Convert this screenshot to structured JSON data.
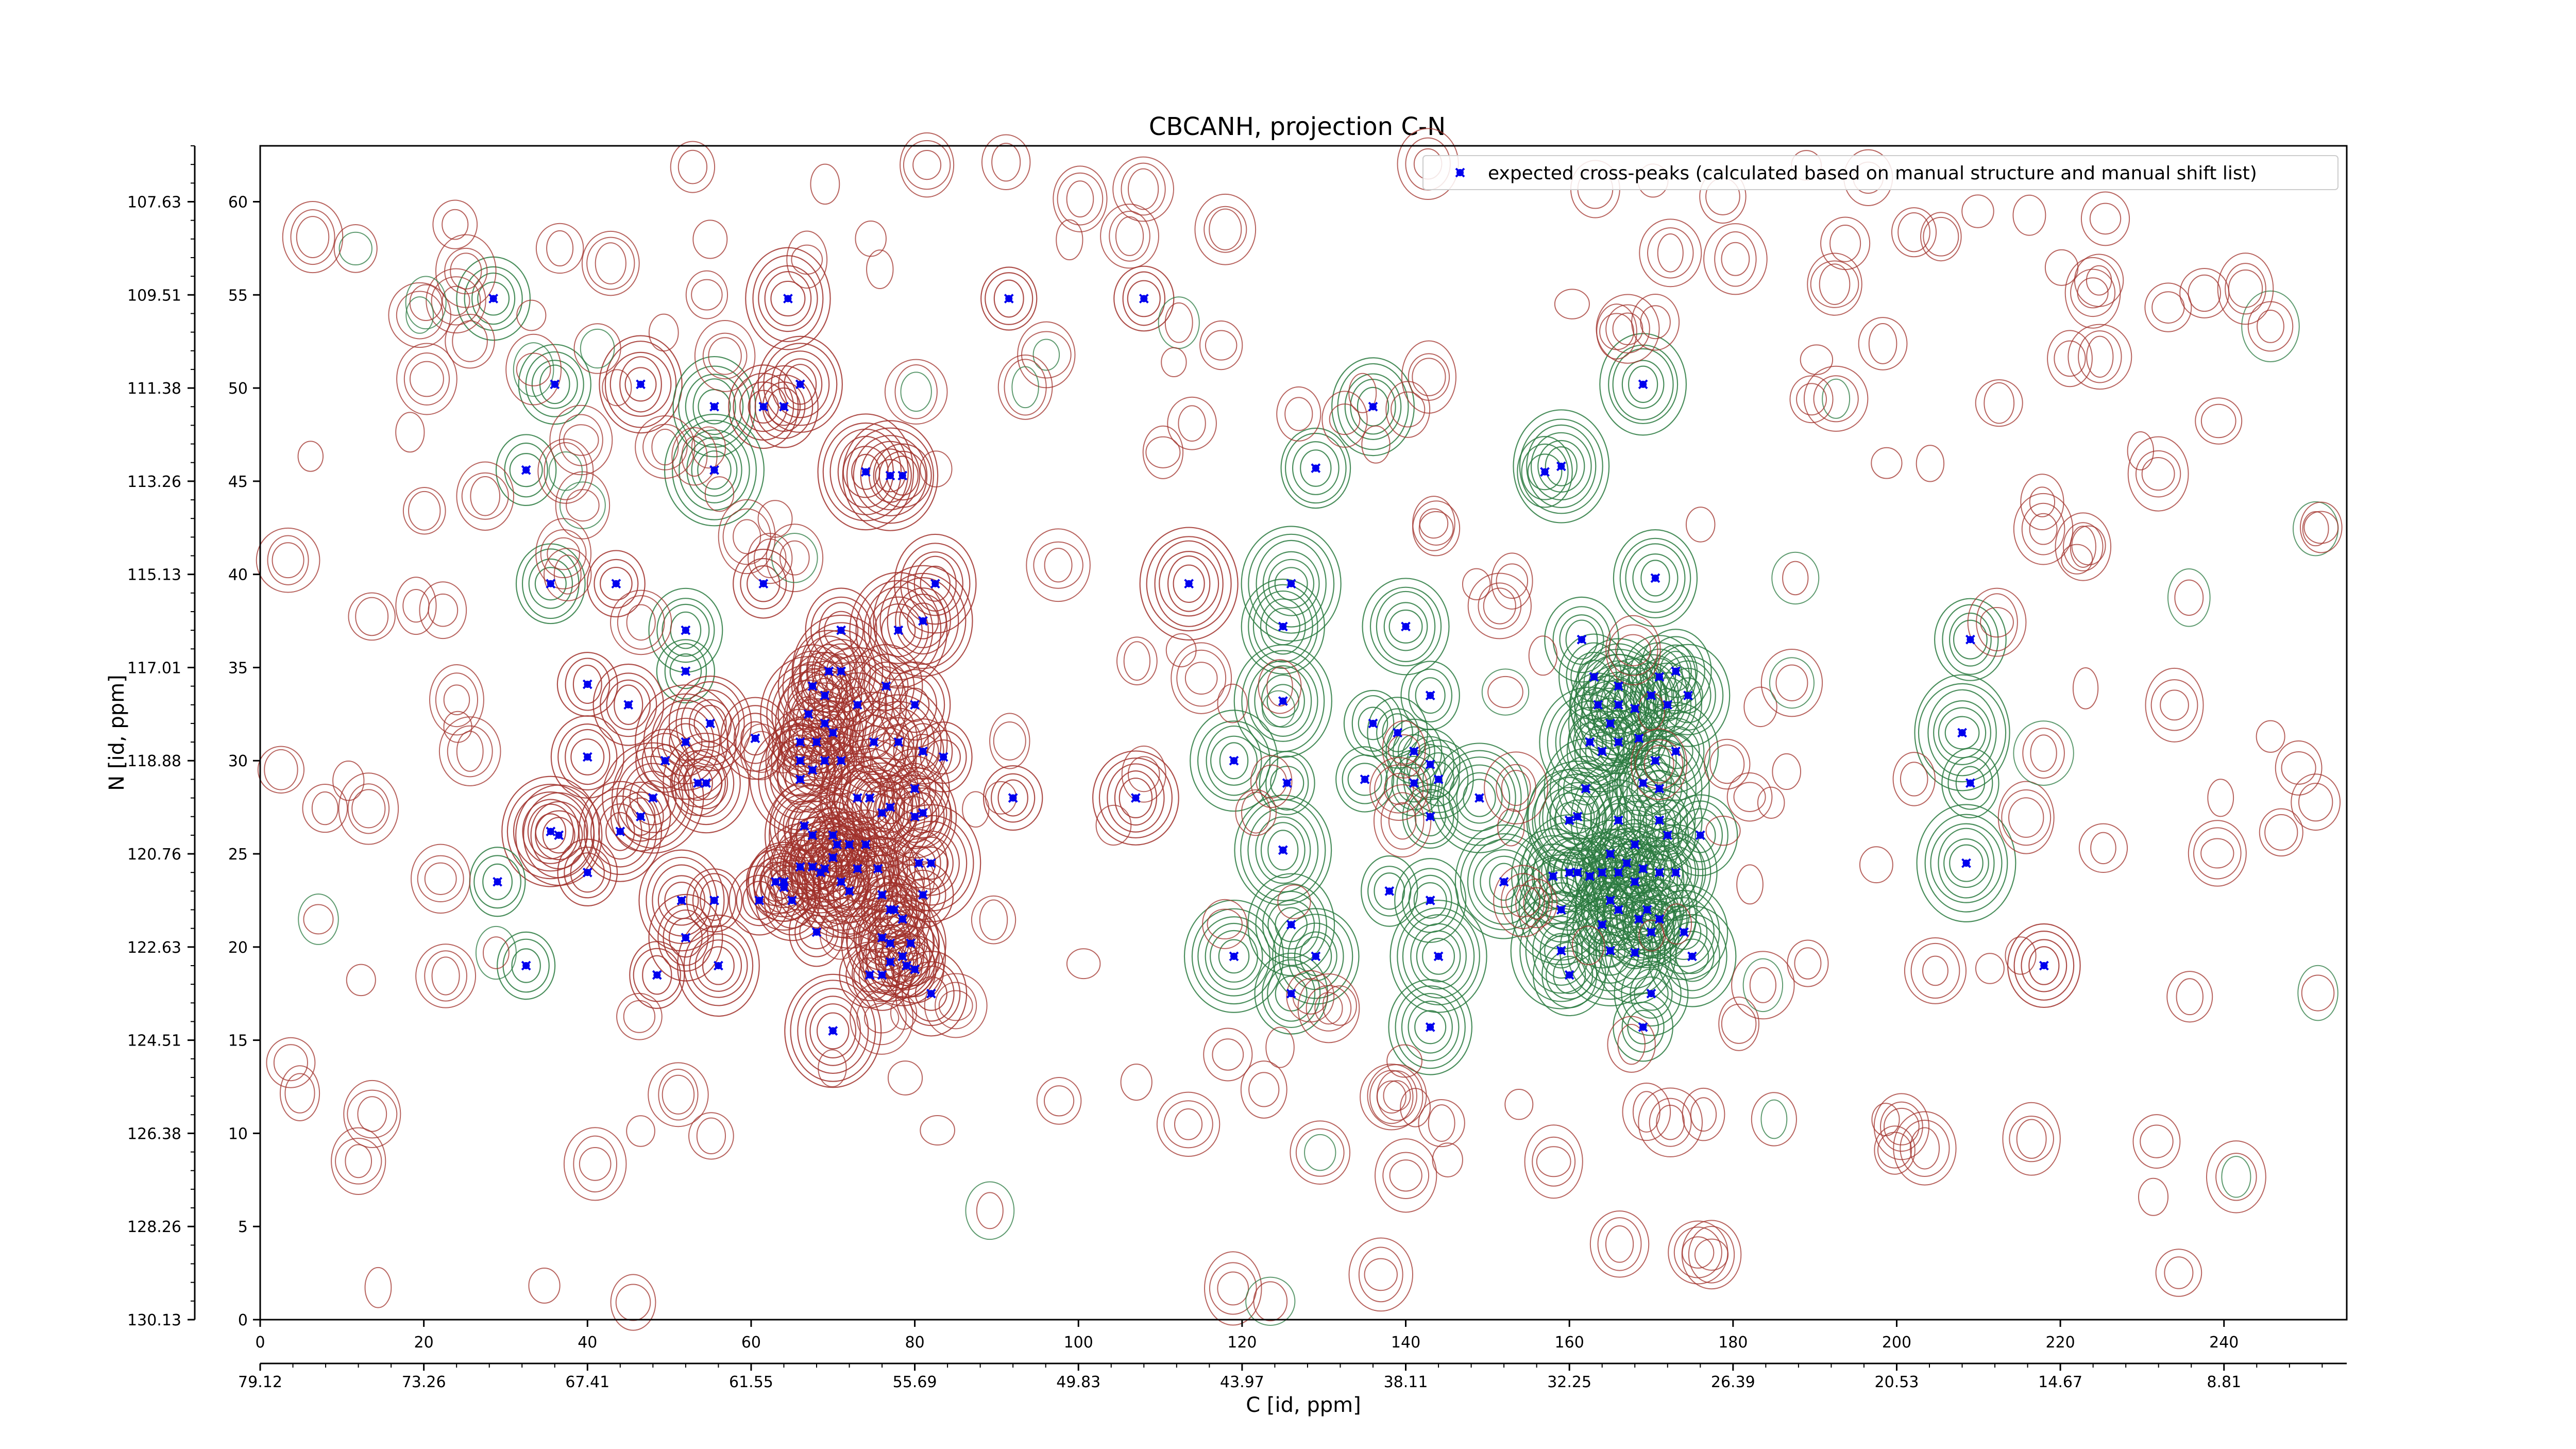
{
  "chart_data": {
    "type": "scatter",
    "title": "CBCANH, projection C-N",
    "xlabel": "C [id, ppm]",
    "ylabel": "N [id, ppm]",
    "xlim": [
      0,
      255
    ],
    "ylim": [
      0,
      63
    ],
    "x_index_ticks": [
      0,
      20,
      40,
      60,
      80,
      100,
      120,
      140,
      160,
      180,
      200,
      220,
      240
    ],
    "x_ppm_ticks": [
      "79.12",
      "73.26",
      "67.41",
      "61.55",
      "55.69",
      "49.83",
      "43.97",
      "38.11",
      "32.25",
      "26.39",
      "20.53",
      "14.67",
      "8.81"
    ],
    "y_index_ticks": [
      0,
      5,
      10,
      15,
      20,
      25,
      30,
      35,
      40,
      45,
      50,
      55,
      60
    ],
    "y_ppm_ticks": [
      "130.13",
      "128.26",
      "126.38",
      "124.51",
      "122.63",
      "120.76",
      "118.88",
      "117.01",
      "115.13",
      "113.26",
      "111.38",
      "109.51",
      "107.63"
    ],
    "legend": {
      "position": "top-right",
      "entries": [
        "expected cross-peaks (calculated based on manual structure and manual shift list)"
      ]
    },
    "colors": {
      "points": "#0000ee",
      "contour_positive": "#a0302a",
      "contour_negative": "#2a7a40"
    },
    "series": [
      {
        "name": "expected cross-peaks (calculated based on manual structure and manual shift list)",
        "marker": "x",
        "points": [
          [
            28.5,
            54.8
          ],
          [
            36,
            50.2
          ],
          [
            46.5,
            50.2
          ],
          [
            55.5,
            49
          ],
          [
            61.5,
            49
          ],
          [
            64,
            49
          ],
          [
            66,
            50.2
          ],
          [
            32.5,
            45.6
          ],
          [
            55.5,
            45.6
          ],
          [
            74,
            45.5
          ],
          [
            77,
            45.3
          ],
          [
            78.5,
            45.3
          ],
          [
            35.5,
            39.5
          ],
          [
            43.5,
            39.5
          ],
          [
            61.5,
            39.5
          ],
          [
            82.5,
            39.5
          ],
          [
            52,
            37
          ],
          [
            71,
            37
          ],
          [
            78,
            37
          ],
          [
            81,
            37.5
          ],
          [
            52,
            34.8
          ],
          [
            69.5,
            34.8
          ],
          [
            71,
            34.8
          ],
          [
            40,
            34.1
          ],
          [
            67.5,
            34
          ],
          [
            69,
            33.5
          ],
          [
            76.5,
            34
          ],
          [
            67,
            32.5
          ],
          [
            73,
            33
          ],
          [
            80,
            33
          ],
          [
            45,
            33
          ],
          [
            69,
            32
          ],
          [
            55,
            32
          ],
          [
            68,
            31
          ],
          [
            52,
            31
          ],
          [
            66,
            31
          ],
          [
            70,
            31.5
          ],
          [
            60.5,
            31.2
          ],
          [
            40,
            30.2
          ],
          [
            66,
            30
          ],
          [
            67.5,
            29.5
          ],
          [
            69,
            30
          ],
          [
            71,
            30
          ],
          [
            75,
            31
          ],
          [
            78,
            31
          ],
          [
            81,
            30.5
          ],
          [
            83.5,
            30.2
          ],
          [
            49.5,
            30
          ],
          [
            53.5,
            28.8
          ],
          [
            54.5,
            28.8
          ],
          [
            74.5,
            28
          ],
          [
            66,
            29
          ],
          [
            73,
            28
          ],
          [
            48,
            28
          ],
          [
            80,
            28.5
          ],
          [
            92,
            28
          ],
          [
            77,
            27.5
          ],
          [
            80,
            27
          ],
          [
            46.5,
            27
          ],
          [
            76,
            27.2
          ],
          [
            81,
            27.2
          ],
          [
            66.5,
            26.5
          ],
          [
            67.5,
            26
          ],
          [
            70,
            26
          ],
          [
            72,
            25.5
          ],
          [
            35.5,
            26.2
          ],
          [
            36.5,
            26
          ],
          [
            44,
            26.2
          ],
          [
            70.5,
            25.5
          ],
          [
            74,
            25.5
          ],
          [
            70,
            24.8
          ],
          [
            69,
            24.2
          ],
          [
            66,
            24.3
          ],
          [
            67.5,
            24.3
          ],
          [
            68.5,
            24
          ],
          [
            73,
            24.2
          ],
          [
            75.5,
            24.2
          ],
          [
            71,
            23.5
          ],
          [
            80.5,
            24.5
          ],
          [
            82,
            24.5
          ],
          [
            63,
            23.5
          ],
          [
            64,
            23.5
          ],
          [
            40,
            24
          ],
          [
            29,
            23.5
          ],
          [
            64,
            23.2
          ],
          [
            72,
            23
          ],
          [
            76,
            22.8
          ],
          [
            81,
            22.8
          ],
          [
            51.5,
            22.5
          ],
          [
            55.5,
            22.5
          ],
          [
            61,
            22.5
          ],
          [
            65,
            22.5
          ],
          [
            77,
            22
          ],
          [
            77.5,
            22
          ],
          [
            78.5,
            21.5
          ],
          [
            68,
            20.8
          ],
          [
            52,
            20.5
          ],
          [
            76,
            20.5
          ],
          [
            77,
            20.2
          ],
          [
            79.5,
            20.2
          ],
          [
            78.5,
            19.5
          ],
          [
            77,
            19.2
          ],
          [
            79,
            19
          ],
          [
            80,
            18.8
          ],
          [
            76,
            18.5
          ],
          [
            74.5,
            18.5
          ],
          [
            56,
            19
          ],
          [
            32.5,
            19
          ],
          [
            48.5,
            18.5
          ],
          [
            82,
            17.5
          ],
          [
            70,
            15.5
          ],
          [
            107,
            28
          ],
          [
            126,
            39.5
          ],
          [
            125,
            37.2
          ],
          [
            140,
            37.2
          ],
          [
            125,
            33.2
          ],
          [
            136,
            32
          ],
          [
            143,
            33.5
          ],
          [
            139,
            31.5
          ],
          [
            141,
            30.5
          ],
          [
            143,
            29.8
          ],
          [
            119,
            30
          ],
          [
            125.5,
            28.8
          ],
          [
            135,
            29
          ],
          [
            141,
            28.8
          ],
          [
            144,
            29
          ],
          [
            149,
            28
          ],
          [
            143,
            27
          ],
          [
            125,
            25.2
          ],
          [
            138,
            23
          ],
          [
            143,
            22.5
          ],
          [
            126,
            21.2
          ],
          [
            119,
            19.5
          ],
          [
            129,
            19.5
          ],
          [
            144,
            19.5
          ],
          [
            126,
            17.5
          ],
          [
            143,
            15.7
          ],
          [
            152,
            23.5
          ],
          [
            158,
            23.8
          ],
          [
            160,
            24
          ],
          [
            161,
            24
          ],
          [
            162.5,
            23.8
          ],
          [
            164,
            24
          ],
          [
            165,
            25
          ],
          [
            166,
            24
          ],
          [
            167,
            24.5
          ],
          [
            168,
            23.5
          ],
          [
            169,
            24.2
          ],
          [
            171,
            24
          ],
          [
            173,
            24
          ],
          [
            159,
            22
          ],
          [
            165,
            22.5
          ],
          [
            166,
            22
          ],
          [
            168.5,
            21.5
          ],
          [
            169.5,
            22
          ],
          [
            171,
            21.5
          ],
          [
            164,
            21.2
          ],
          [
            170,
            20.8
          ],
          [
            174,
            20.8
          ],
          [
            159,
            19.8
          ],
          [
            165,
            19.8
          ],
          [
            168,
            19.7
          ],
          [
            175,
            19.5
          ],
          [
            160,
            18.5
          ],
          [
            170,
            17.5
          ],
          [
            169,
            15.7
          ],
          [
            161,
            27
          ],
          [
            160,
            26.8
          ],
          [
            166,
            26.8
          ],
          [
            171,
            26.8
          ],
          [
            176,
            26
          ],
          [
            168,
            25.5
          ],
          [
            172,
            26
          ],
          [
            162,
            28.5
          ],
          [
            169,
            28.8
          ],
          [
            171,
            28.5
          ],
          [
            162.5,
            31
          ],
          [
            164,
            30.5
          ],
          [
            166,
            31
          ],
          [
            168.5,
            31.2
          ],
          [
            170.5,
            30
          ],
          [
            173,
            30.5
          ],
          [
            163.5,
            33
          ],
          [
            166,
            33
          ],
          [
            170,
            33.5
          ],
          [
            172,
            33
          ],
          [
            174.5,
            33.5
          ],
          [
            165,
            32
          ],
          [
            168,
            32.8
          ],
          [
            163,
            34.5
          ],
          [
            166,
            34
          ],
          [
            171,
            34.5
          ],
          [
            173,
            34.8
          ],
          [
            161.5,
            36.5
          ],
          [
            170.5,
            39.8
          ],
          [
            157,
            45.5
          ],
          [
            159,
            45.8
          ],
          [
            169,
            50.2
          ],
          [
            209,
            36.5
          ],
          [
            208,
            31.5
          ],
          [
            209,
            28.8
          ],
          [
            208.5,
            24.5
          ],
          [
            218,
            19
          ],
          [
            91.5,
            54.8
          ],
          [
            108,
            54.8
          ],
          [
            136,
            49
          ],
          [
            129,
            45.7
          ],
          [
            113.5,
            39.5
          ],
          [
            64.5,
            54.8
          ]
        ]
      }
    ]
  }
}
